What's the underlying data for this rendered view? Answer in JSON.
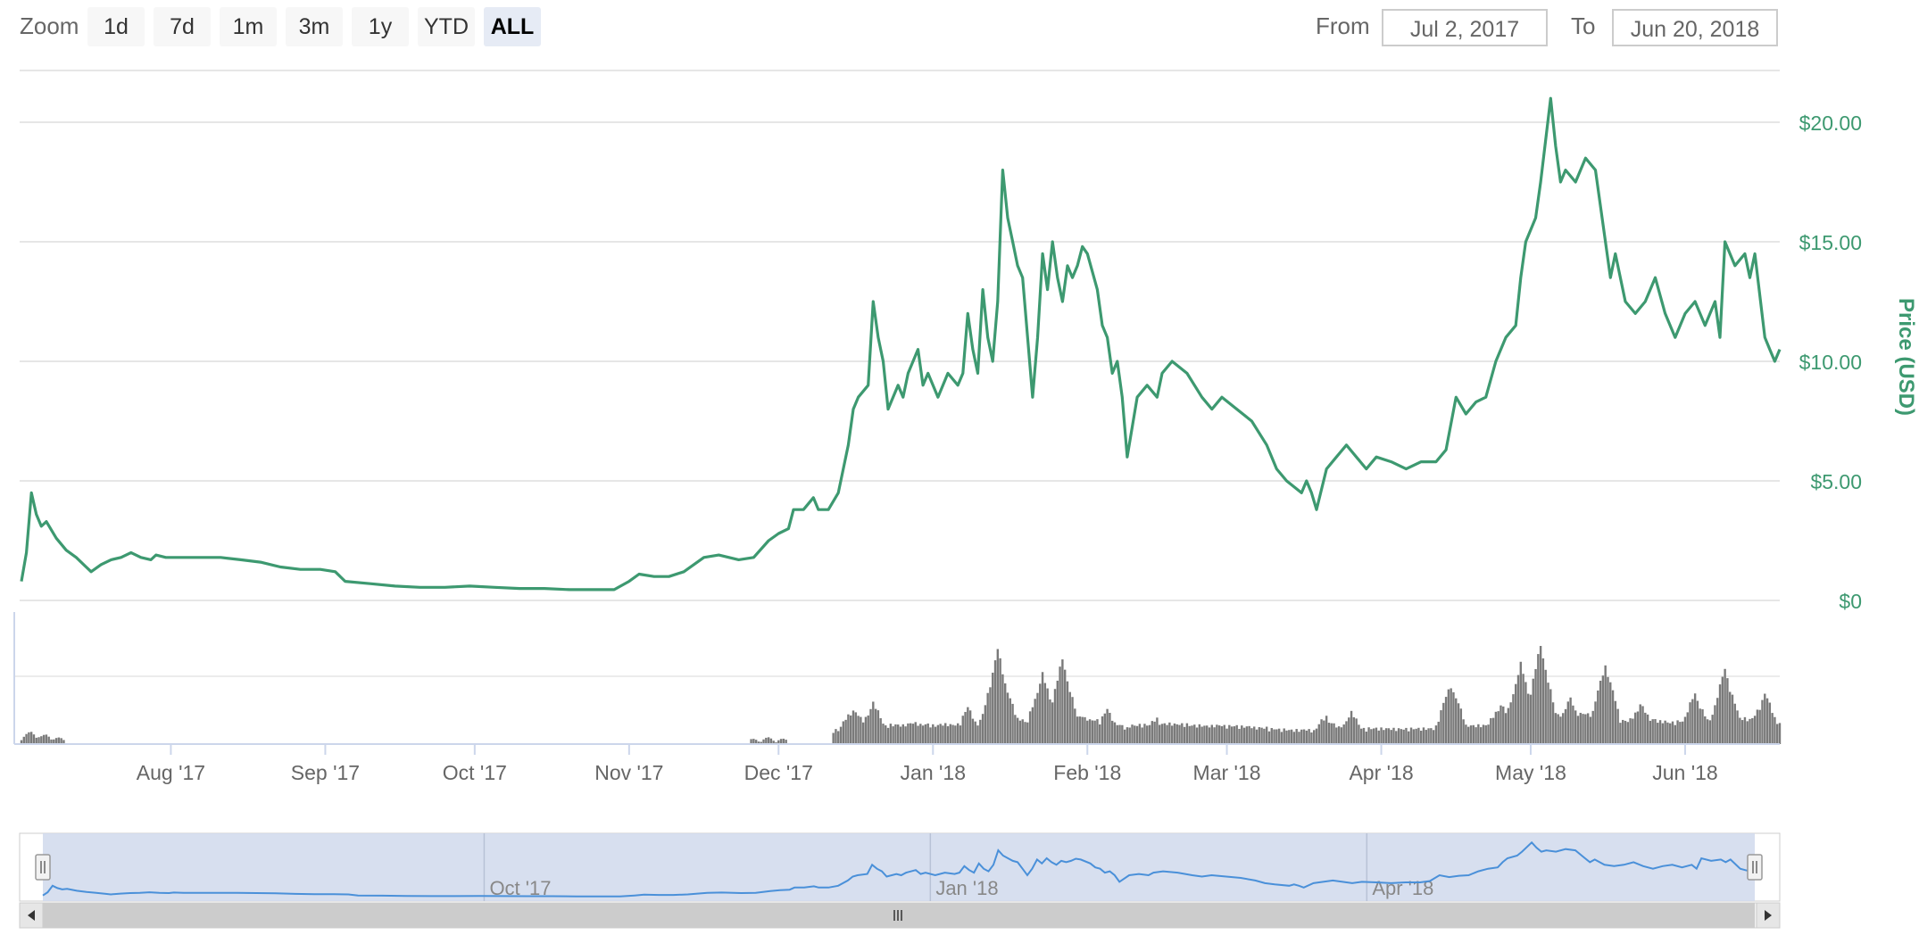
{
  "toolbar": {
    "zoom_label": "Zoom",
    "zoom_buttons": [
      "1d",
      "7d",
      "1m",
      "3m",
      "1y",
      "YTD",
      "ALL"
    ],
    "active_zoom": "ALL",
    "from_label": "From",
    "from_value": "Jul 2, 2017",
    "to_label": "To",
    "to_value": "Jun 20, 2018"
  },
  "colors": {
    "price_line": "#3d9970",
    "volume": "#7a7a7a",
    "navigator_fill": "#d3dbed",
    "navigator_line": "#4a90d9",
    "grid": "#e6e6e6"
  },
  "chart_data": {
    "type": "line",
    "ylabel": "Price (USD)",
    "yticks": [
      "$0",
      "$5.00",
      "$10.00",
      "$15.00",
      "$20.00"
    ],
    "ylim": [
      0,
      22
    ],
    "x_ticks": [
      "Aug '17",
      "Sep '17",
      "Oct '17",
      "Nov '17",
      "Dec '17",
      "Jan '18",
      "Feb '18",
      "Mar '18",
      "Apr '18",
      "May '18",
      "Jun '18"
    ],
    "x_tick_days": [
      30,
      61,
      91,
      122,
      152,
      183,
      214,
      242,
      273,
      303,
      334
    ],
    "x_range_days": [
      0,
      353
    ],
    "series": [
      {
        "values_desc": "price",
        "points": [
          [
            0,
            0.8
          ],
          [
            1,
            2.0
          ],
          [
            2,
            4.5
          ],
          [
            3,
            3.6
          ],
          [
            4,
            3.1
          ],
          [
            5,
            3.3
          ],
          [
            7,
            2.6
          ],
          [
            9,
            2.1
          ],
          [
            11,
            1.8
          ],
          [
            13,
            1.4
          ],
          [
            14,
            1.2
          ],
          [
            16,
            1.5
          ],
          [
            18,
            1.7
          ],
          [
            20,
            1.8
          ],
          [
            22,
            2.0
          ],
          [
            24,
            1.8
          ],
          [
            26,
            1.7
          ],
          [
            27,
            1.9
          ],
          [
            29,
            1.8
          ],
          [
            32,
            1.8
          ],
          [
            36,
            1.8
          ],
          [
            40,
            1.8
          ],
          [
            44,
            1.7
          ],
          [
            48,
            1.6
          ],
          [
            52,
            1.4
          ],
          [
            56,
            1.3
          ],
          [
            60,
            1.3
          ],
          [
            63,
            1.2
          ],
          [
            65,
            0.8
          ],
          [
            70,
            0.7
          ],
          [
            75,
            0.6
          ],
          [
            80,
            0.55
          ],
          [
            85,
            0.55
          ],
          [
            90,
            0.6
          ],
          [
            95,
            0.55
          ],
          [
            100,
            0.5
          ],
          [
            105,
            0.5
          ],
          [
            110,
            0.45
          ],
          [
            115,
            0.45
          ],
          [
            119,
            0.45
          ],
          [
            122,
            0.8
          ],
          [
            124,
            1.1
          ],
          [
            127,
            1.0
          ],
          [
            130,
            1.0
          ],
          [
            133,
            1.2
          ],
          [
            135,
            1.5
          ],
          [
            137,
            1.8
          ],
          [
            140,
            1.9
          ],
          [
            144,
            1.7
          ],
          [
            147,
            1.8
          ],
          [
            150,
            2.5
          ],
          [
            152,
            2.8
          ],
          [
            154,
            3.0
          ],
          [
            155,
            3.8
          ],
          [
            157,
            3.8
          ],
          [
            159,
            4.3
          ],
          [
            160,
            3.8
          ],
          [
            162,
            3.8
          ],
          [
            164,
            4.5
          ],
          [
            166,
            6.5
          ],
          [
            167,
            8.0
          ],
          [
            168,
            8.5
          ],
          [
            170,
            9.0
          ],
          [
            171,
            12.5
          ],
          [
            172,
            11.0
          ],
          [
            173,
            10.0
          ],
          [
            174,
            8.0
          ],
          [
            176,
            9.0
          ],
          [
            177,
            8.5
          ],
          [
            178,
            9.5
          ],
          [
            180,
            10.5
          ],
          [
            181,
            9.0
          ],
          [
            182,
            9.5
          ],
          [
            184,
            8.5
          ],
          [
            186,
            9.5
          ],
          [
            188,
            9.0
          ],
          [
            189,
            9.5
          ],
          [
            190,
            12.0
          ],
          [
            191,
            10.5
          ],
          [
            192,
            9.5
          ],
          [
            193,
            13.0
          ],
          [
            194,
            11.0
          ],
          [
            195,
            10.0
          ],
          [
            196,
            12.5
          ],
          [
            197,
            18.0
          ],
          [
            198,
            16.0
          ],
          [
            199,
            15.0
          ],
          [
            200,
            14.0
          ],
          [
            201,
            13.5
          ],
          [
            202,
            11.0
          ],
          [
            203,
            8.5
          ],
          [
            204,
            11.0
          ],
          [
            205,
            14.5
          ],
          [
            206,
            13.0
          ],
          [
            207,
            15.0
          ],
          [
            208,
            13.5
          ],
          [
            209,
            12.5
          ],
          [
            210,
            14.0
          ],
          [
            211,
            13.5
          ],
          [
            212,
            14.0
          ],
          [
            213,
            14.8
          ],
          [
            214,
            14.5
          ],
          [
            216,
            13.0
          ],
          [
            217,
            11.5
          ],
          [
            218,
            11.0
          ],
          [
            219,
            9.5
          ],
          [
            220,
            10.0
          ],
          [
            221,
            8.5
          ],
          [
            222,
            6.0
          ],
          [
            224,
            8.5
          ],
          [
            226,
            9.0
          ],
          [
            228,
            8.5
          ],
          [
            229,
            9.5
          ],
          [
            231,
            10.0
          ],
          [
            234,
            9.5
          ],
          [
            237,
            8.5
          ],
          [
            239,
            8.0
          ],
          [
            241,
            8.5
          ],
          [
            244,
            8.0
          ],
          [
            247,
            7.5
          ],
          [
            250,
            6.5
          ],
          [
            252,
            5.5
          ],
          [
            254,
            5.0
          ],
          [
            257,
            4.5
          ],
          [
            258,
            5.0
          ],
          [
            259,
            4.5
          ],
          [
            260,
            3.8
          ],
          [
            262,
            5.5
          ],
          [
            264,
            6.0
          ],
          [
            266,
            6.5
          ],
          [
            268,
            6.0
          ],
          [
            270,
            5.5
          ],
          [
            272,
            6.0
          ],
          [
            275,
            5.8
          ],
          [
            278,
            5.5
          ],
          [
            281,
            5.8
          ],
          [
            284,
            5.8
          ],
          [
            286,
            6.3
          ],
          [
            288,
            8.5
          ],
          [
            290,
            7.8
          ],
          [
            292,
            8.3
          ],
          [
            294,
            8.5
          ],
          [
            296,
            10.0
          ],
          [
            298,
            11.0
          ],
          [
            300,
            11.5
          ],
          [
            301,
            13.5
          ],
          [
            302,
            15.0
          ],
          [
            304,
            16.0
          ],
          [
            305,
            17.5
          ],
          [
            307,
            21.0
          ],
          [
            308,
            19.0
          ],
          [
            309,
            17.5
          ],
          [
            310,
            18.0
          ],
          [
            312,
            17.5
          ],
          [
            314,
            18.5
          ],
          [
            316,
            18.0
          ],
          [
            318,
            15.0
          ],
          [
            319,
            13.5
          ],
          [
            320,
            14.5
          ],
          [
            322,
            12.5
          ],
          [
            324,
            12.0
          ],
          [
            326,
            12.5
          ],
          [
            328,
            13.5
          ],
          [
            330,
            12.0
          ],
          [
            332,
            11.0
          ],
          [
            334,
            12.0
          ],
          [
            336,
            12.5
          ],
          [
            338,
            11.5
          ],
          [
            340,
            12.5
          ],
          [
            341,
            11.0
          ],
          [
            342,
            15.0
          ],
          [
            344,
            14.0
          ],
          [
            346,
            14.5
          ],
          [
            347,
            13.5
          ],
          [
            348,
            14.5
          ],
          [
            350,
            11.0
          ],
          [
            351,
            10.5
          ],
          [
            352,
            10.0
          ],
          [
            353,
            10.5
          ]
        ]
      },
      {
        "values_desc": "volume",
        "peaks": [
          [
            2,
            0.08
          ],
          [
            5,
            0.05
          ],
          [
            150,
            0.02
          ],
          [
            167,
            0.3
          ],
          [
            171,
            0.35
          ],
          [
            190,
            0.3
          ],
          [
            196,
            0.9
          ],
          [
            197,
            0.65
          ],
          [
            205,
            0.65
          ],
          [
            209,
            0.8
          ],
          [
            213,
            0.25
          ],
          [
            218,
            0.28
          ],
          [
            228,
            0.2
          ],
          [
            262,
            0.22
          ],
          [
            267,
            0.25
          ],
          [
            287,
            0.55
          ],
          [
            297,
            0.35
          ],
          [
            301,
            0.75
          ],
          [
            305,
            0.95
          ],
          [
            311,
            0.4
          ],
          [
            318,
            0.75
          ],
          [
            325,
            0.35
          ],
          [
            336,
            0.45
          ],
          [
            342,
            0.7
          ],
          [
            350,
            0.45
          ]
        ]
      }
    ]
  },
  "navigator": {
    "labels": [
      "Oct '17",
      "Jan '18",
      "Apr '18"
    ],
    "label_days": [
      91,
      183,
      273
    ]
  }
}
